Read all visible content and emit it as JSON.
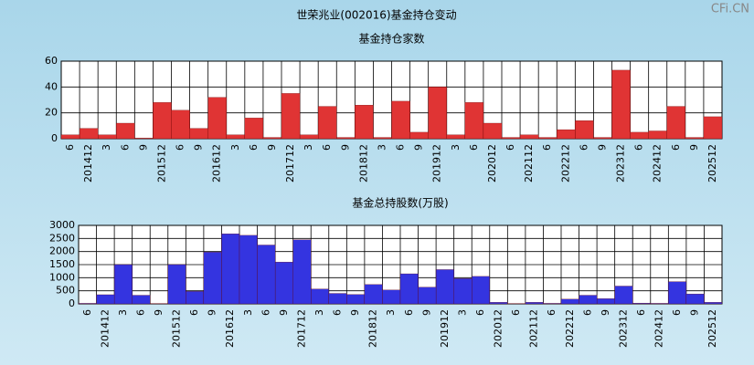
{
  "title": "世荣兆业(002016)基金持仓变动",
  "watermark": "CFi.CN",
  "chart_data": [
    {
      "type": "bar",
      "title": "基金持仓家数",
      "categories": [
        "6",
        "201412",
        "3",
        "6",
        "9",
        "201512",
        "6",
        "9",
        "201612",
        "3",
        "6",
        "9",
        "201712",
        "3",
        "6",
        "9",
        "201812",
        "3",
        "6",
        "9",
        "201912",
        "3",
        "6",
        "202012",
        "6",
        "202112",
        "6",
        "202212",
        "6",
        "9",
        "202312",
        "6",
        "202412",
        "6",
        "9",
        "202512"
      ],
      "values": [
        3,
        8,
        3,
        12,
        0.5,
        28,
        22,
        8,
        32,
        3,
        16,
        1,
        35,
        3,
        25,
        1,
        26,
        1,
        29,
        5,
        40,
        3,
        28,
        12,
        1,
        3,
        1,
        7,
        14,
        1,
        53,
        5,
        6,
        25,
        1,
        17
      ],
      "color": "#e03434",
      "ylim": [
        0,
        60
      ],
      "yticks": [
        0,
        20,
        40,
        60
      ],
      "grid": true
    },
    {
      "type": "bar",
      "title": "基金总持股数(万股)",
      "categories": [
        "6",
        "201412",
        "3",
        "6",
        "9",
        "201512",
        "6",
        "9",
        "201612",
        "3",
        "6",
        "9",
        "201712",
        "3",
        "6",
        "9",
        "201812",
        "3",
        "6",
        "9",
        "201912",
        "3",
        "6",
        "202012",
        "6",
        "202112",
        "6",
        "202212",
        "6",
        "9",
        "202312",
        "6",
        "202412",
        "6",
        "9",
        "202512"
      ],
      "values": [
        20,
        350,
        1500,
        330,
        10,
        1500,
        480,
        1980,
        2680,
        2620,
        2250,
        1600,
        2450,
        570,
        400,
        360,
        740,
        530,
        1150,
        640,
        1310,
        970,
        1050,
        60,
        10,
        60,
        20,
        180,
        330,
        200,
        680,
        30,
        20,
        850,
        380,
        60
      ],
      "color": "#3434e0",
      "ylim": [
        0,
        3000
      ],
      "yticks": [
        0,
        500,
        1000,
        1500,
        2000,
        2500,
        3000
      ],
      "grid": true
    }
  ]
}
